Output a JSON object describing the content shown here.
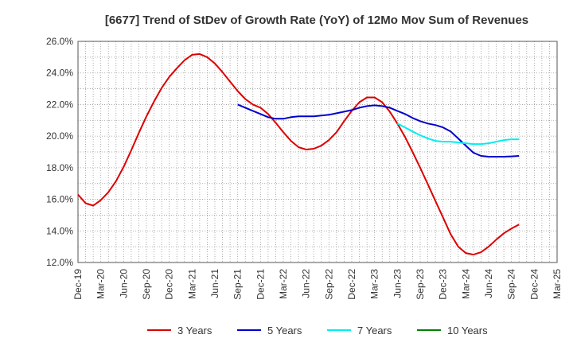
{
  "chart_data": {
    "type": "line",
    "title": "[6677]  Trend of StDev of Growth Rate (YoY) of 12Mo Mov Sum of Revenues",
    "xlabel": "",
    "ylabel": "",
    "ylim": [
      12.0,
      26.0
    ],
    "yticks": [
      "12.0%",
      "14.0%",
      "16.0%",
      "18.0%",
      "20.0%",
      "22.0%",
      "24.0%",
      "26.0%"
    ],
    "ytick_values": [
      12,
      14,
      16,
      18,
      20,
      22,
      24,
      26
    ],
    "xticks": [
      "Dec-19",
      "Mar-20",
      "Jun-20",
      "Sep-20",
      "Dec-20",
      "Mar-21",
      "Jun-21",
      "Sep-21",
      "Dec-21",
      "Mar-22",
      "Jun-22",
      "Sep-22",
      "Dec-22",
      "Mar-23",
      "Jun-23",
      "Sep-23",
      "Dec-23",
      "Mar-24",
      "Jun-24",
      "Sep-24",
      "Dec-24",
      "Mar-25"
    ],
    "grid": true,
    "legend_position": "bottom",
    "series": [
      {
        "name": "3 Years",
        "color": "#dd0000",
        "start_index": 0,
        "values": [
          16.3,
          15.75,
          15.6,
          15.95,
          16.45,
          17.15,
          18.05,
          19.1,
          20.2,
          21.25,
          22.2,
          23.05,
          23.75,
          24.3,
          24.8,
          25.15,
          25.2,
          25.0,
          24.6,
          24.05,
          23.45,
          22.85,
          22.35,
          22.0,
          21.8,
          21.4,
          20.85,
          20.25,
          19.7,
          19.3,
          19.15,
          19.2,
          19.4,
          19.75,
          20.25,
          20.95,
          21.6,
          22.15,
          22.45,
          22.45,
          22.15,
          21.55,
          20.8,
          19.95,
          19.0,
          18.0,
          16.95,
          15.9,
          14.85,
          13.8,
          13.0,
          12.6,
          12.5,
          12.65,
          13.0,
          13.45,
          13.85,
          14.15,
          14.4
        ]
      },
      {
        "name": "5 Years",
        "color": "#0000cc",
        "start_index": 21,
        "values": [
          22.0,
          21.8,
          21.6,
          21.4,
          21.2,
          21.1,
          21.1,
          21.2,
          21.25,
          21.25,
          21.25,
          21.3,
          21.35,
          21.45,
          21.55,
          21.65,
          21.8,
          21.9,
          21.95,
          21.9,
          21.8,
          21.6,
          21.4,
          21.15,
          20.95,
          20.8,
          20.7,
          20.55,
          20.3,
          19.85,
          19.4,
          18.95,
          18.75,
          18.7,
          18.7,
          18.7,
          18.72,
          18.75
        ]
      },
      {
        "name": "7 Years",
        "color": "#00eeee",
        "start_index": 42,
        "values": [
          20.8,
          20.55,
          20.3,
          20.05,
          19.85,
          19.7,
          19.65,
          19.65,
          19.6,
          19.55,
          19.5,
          19.5,
          19.55,
          19.65,
          19.75,
          19.8,
          19.8
        ]
      },
      {
        "name": "10 Years",
        "color": "#008000",
        "start_index": 0,
        "values": []
      }
    ]
  }
}
